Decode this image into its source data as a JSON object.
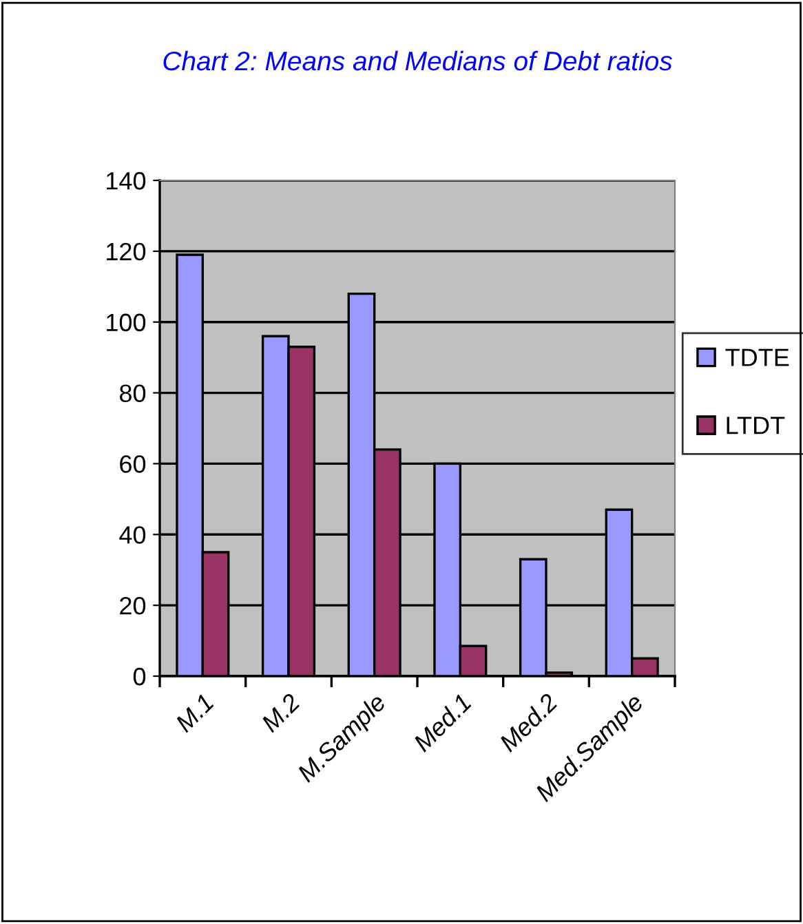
{
  "chart_data": {
    "type": "bar",
    "title": "Chart 2: Means and Medians of Debt ratios",
    "categories": [
      "M.1",
      "M.2",
      "M.Sample",
      "Med.1",
      "Med.2",
      "Med.Sample"
    ],
    "series": [
      {
        "name": "TDTE",
        "color": "#9999ff",
        "values": [
          119,
          96,
          108,
          60,
          33,
          47
        ]
      },
      {
        "name": "LTDT",
        "color": "#993366",
        "values": [
          35,
          93,
          64,
          8.5,
          1,
          5
        ]
      }
    ],
    "ylim": [
      0,
      140
    ],
    "yticks": [
      0,
      20,
      40,
      60,
      80,
      100,
      120,
      140
    ],
    "grid": "y",
    "legend": "right"
  }
}
